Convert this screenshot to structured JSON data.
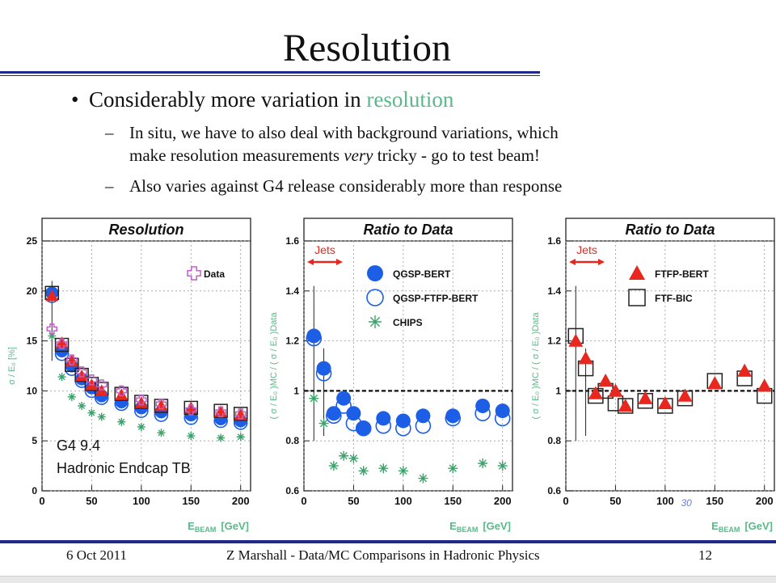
{
  "slide": {
    "title": "Resolution",
    "bullet_pre": "Considerably more variation in ",
    "bullet_hl": "resolution",
    "sub1_line1": "In situ, we have to also deal with background variations, which",
    "sub1_line2_pre": "make resolution measurements ",
    "sub1_line2_em": "very",
    "sub1_line2_post": " tricky - go to test beam!",
    "sub2": "Also varies against G4 release considerably more than response",
    "dash": "–",
    "bullet_dot": "•"
  },
  "footer": {
    "date": "6 Oct 2011",
    "center": "Z Marshall - Data/MC Comparisons in Hadronic Physics",
    "page": "12"
  },
  "colors": {
    "accent_rule": "#1f2a8a",
    "highlight": "#5bb889",
    "qgsp_bert": "#1c5fe6",
    "chips": "#3aa36a",
    "ftfp_bert": "#e8281e",
    "data": "#c060c8"
  },
  "chart_data": [
    {
      "type": "scatter",
      "title": "Resolution",
      "xlabel_main": "E",
      "xlabel_sub": "BEAM",
      "xlabel_unit": "[GeV]",
      "ylabel": "σ / E₀ [%]",
      "xlim": [
        0,
        210
      ],
      "ylim": [
        0,
        25
      ],
      "xticks": [
        0,
        50,
        100,
        150,
        200
      ],
      "yticks": [
        0,
        5,
        10,
        15,
        20,
        25
      ],
      "legend": [
        "Data"
      ],
      "annotation_line1": "G4 9.4",
      "annotation_line2": "Hadronic Endcap TB",
      "x": [
        10,
        20,
        30,
        40,
        50,
        60,
        80,
        100,
        120,
        150,
        180,
        200
      ],
      "series": [
        {
          "name": "Data",
          "marker": "open-cross",
          "values": [
            16.2,
            14.7,
            13.1,
            11.9,
            11.1,
            10.6,
            10.0,
            9.1,
            8.7,
            8.1,
            7.9,
            7.7
          ]
        },
        {
          "name": "QGSP-BERT",
          "marker": "filled-circle",
          "values": [
            19.8,
            14.0,
            12.5,
            11.2,
            10.3,
            9.5,
            8.9,
            8.3,
            7.9,
            7.6,
            7.2,
            7.0
          ]
        },
        {
          "name": "QGSP-FTFP-BERT",
          "marker": "open-circle",
          "values": [
            19.5,
            13.7,
            12.2,
            11.0,
            10.0,
            9.3,
            8.7,
            8.0,
            7.6,
            7.3,
            7.0,
            6.8
          ]
        },
        {
          "name": "CHIPS",
          "marker": "star",
          "values": [
            15.5,
            11.4,
            9.4,
            8.5,
            7.8,
            7.4,
            6.9,
            6.4,
            5.8,
            5.5,
            5.3,
            5.4
          ]
        },
        {
          "name": "FTFP-BERT",
          "marker": "filled-triangle",
          "values": [
            19.5,
            14.8,
            13.0,
            11.5,
            10.6,
            10.0,
            9.6,
            8.8,
            8.5,
            8.3,
            7.9,
            7.6
          ]
        },
        {
          "name": "FTF-BIC",
          "marker": "open-square",
          "values": [
            19.8,
            14.6,
            12.6,
            11.6,
            10.7,
            10.2,
            9.7,
            8.9,
            8.5,
            8.3,
            8.0,
            7.7
          ]
        }
      ]
    },
    {
      "type": "scatter",
      "title": "Ratio to Data",
      "xlabel_main": "E",
      "xlabel_sub": "BEAM",
      "xlabel_unit": "[GeV]",
      "ylabel": "( σ / E₀ )MC / ( σ / E₀ )Data",
      "xlim": [
        0,
        210
      ],
      "ylim": [
        0.6,
        1.6
      ],
      "xticks": [
        0,
        50,
        100,
        150,
        200
      ],
      "yticks": [
        0.6,
        0.8,
        1,
        1.2,
        1.4,
        1.6
      ],
      "jets_label": "Jets",
      "legend": [
        "QGSP-BERT",
        "QGSP-FTFP-BERT",
        "CHIPS"
      ],
      "x": [
        10,
        20,
        30,
        40,
        50,
        60,
        80,
        100,
        120,
        150,
        180,
        200
      ],
      "series": [
        {
          "name": "QGSP-BERT",
          "marker": "filled-circle",
          "values": [
            1.22,
            1.09,
            0.91,
            0.97,
            0.91,
            0.85,
            0.89,
            0.88,
            0.9,
            0.9,
            0.94,
            0.92
          ]
        },
        {
          "name": "QGSP-FTFP-BERT",
          "marker": "open-circle",
          "values": [
            1.21,
            1.07,
            0.9,
            0.94,
            0.87,
            0.85,
            0.86,
            0.85,
            0.86,
            0.89,
            0.91,
            0.89
          ]
        },
        {
          "name": "CHIPS",
          "marker": "star",
          "values": [
            0.97,
            0.87,
            0.7,
            0.74,
            0.73,
            0.68,
            0.69,
            0.68,
            0.65,
            0.69,
            0.71,
            0.7
          ]
        }
      ]
    },
    {
      "type": "scatter",
      "title": "Ratio to Data",
      "xlabel_main": "E",
      "xlabel_sub": "BEAM",
      "xlabel_unit": "[GeV]",
      "ylabel": "( σ / E₀ )MC / ( σ / E₀ )Data",
      "xlim": [
        0,
        210
      ],
      "ylim": [
        0.6,
        1.6
      ],
      "xticks": [
        0,
        50,
        100,
        150,
        200
      ],
      "yticks": [
        0.6,
        0.8,
        1,
        1.2,
        1.4,
        1.6
      ],
      "jets_label": "Jets",
      "legend": [
        "FTFP-BERT",
        "FTF-BIC"
      ],
      "overlay_text": "30",
      "x": [
        10,
        20,
        30,
        40,
        50,
        60,
        80,
        100,
        120,
        150,
        180,
        200
      ],
      "series": [
        {
          "name": "FTFP-BERT",
          "marker": "filled-triangle",
          "values": [
            1.2,
            1.13,
            0.99,
            1.04,
            1.0,
            0.94,
            0.97,
            0.95,
            0.98,
            1.03,
            1.08,
            1.02
          ]
        },
        {
          "name": "FTF-BIC",
          "marker": "open-square",
          "values": [
            1.22,
            1.09,
            0.98,
            1.0,
            0.95,
            0.94,
            0.96,
            0.94,
            0.97,
            1.04,
            1.05,
            0.98
          ]
        }
      ]
    }
  ]
}
